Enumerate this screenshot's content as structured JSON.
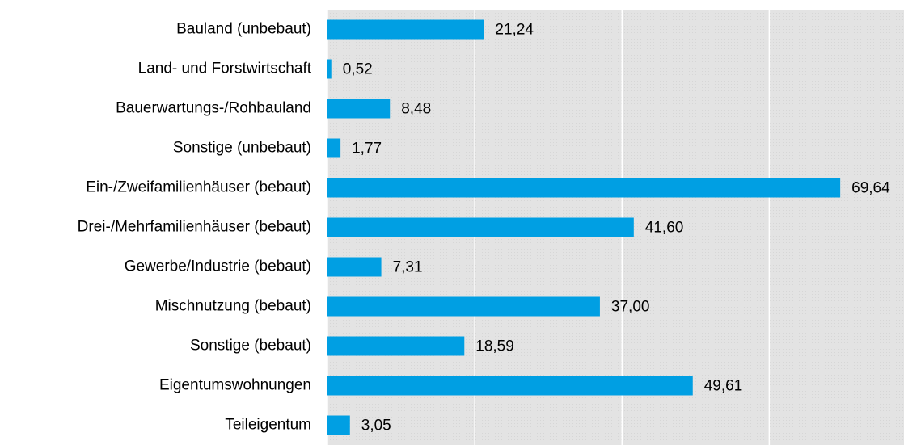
{
  "chart_data": {
    "type": "hbar",
    "categories": [
      "Bauland (unbebaut)",
      "Land- und Forstwirtschaft",
      "Bauerwartungs-/Rohbauland",
      "Sonstige (unbebaut)",
      "Ein-/Zweifamilienhäuser (bebaut)",
      "Drei-/Mehrfamilienhäuser (bebaut)",
      "Gewerbe/Industrie (bebaut)",
      "Mischnutzung (bebaut)",
      "Sonstige (bebaut)",
      "Eigentumswohnungen",
      "Teileigentum"
    ],
    "values": [
      21.24,
      0.52,
      8.48,
      1.77,
      69.64,
      41.6,
      7.31,
      37.0,
      18.59,
      49.61,
      3.05
    ],
    "value_labels": [
      "21,24",
      "0,52",
      "8,48",
      "1,77",
      "69,64",
      "41,60",
      "7,31",
      "37,00",
      "18,59",
      "49,61",
      "3,05"
    ],
    "color": "#009fe3",
    "xlim": [
      0,
      78.3
    ],
    "xticks": [
      0,
      20,
      40,
      60
    ],
    "grid": true
  }
}
